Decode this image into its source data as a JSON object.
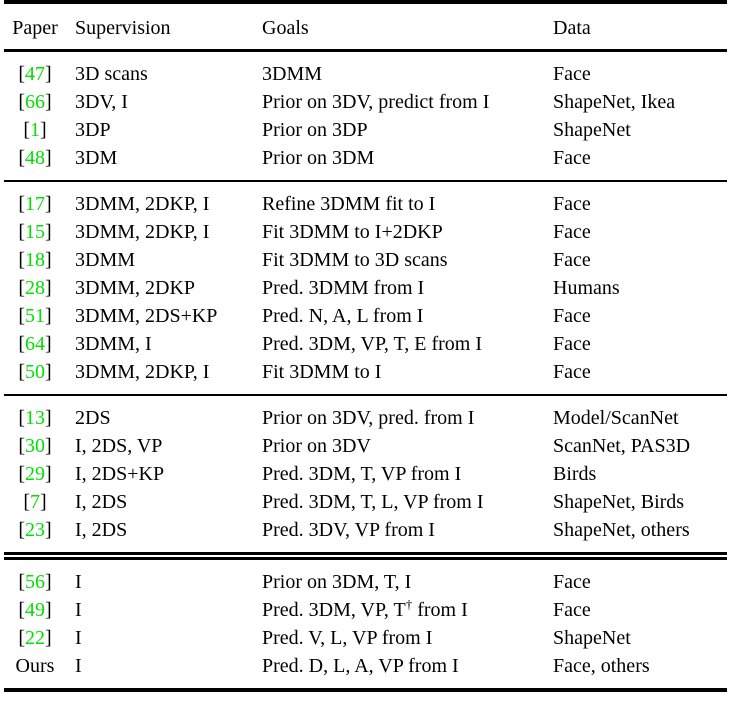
{
  "table": {
    "columns": [
      "Paper",
      "Supervision",
      "Goals",
      "Data"
    ],
    "citation_color": "#00e100",
    "text_color": "#000000",
    "sections": [
      {
        "rows": [
          {
            "paper": "47",
            "citation": true,
            "supervision": "3D scans",
            "goals": "3DMM",
            "data": "Face"
          },
          {
            "paper": "66",
            "citation": true,
            "supervision": "3DV, I",
            "goals": "Prior on 3DV, predict from I",
            "data": "ShapeNet, Ikea"
          },
          {
            "paper": "1",
            "citation": true,
            "supervision": "3DP",
            "goals": "Prior on 3DP",
            "data": "ShapeNet"
          },
          {
            "paper": "48",
            "citation": true,
            "supervision": "3DM",
            "goals": "Prior on 3DM",
            "data": "Face"
          }
        ]
      },
      {
        "rule_before": "single",
        "rows": [
          {
            "paper": "17",
            "citation": true,
            "supervision": "3DMM, 2DKP, I",
            "goals": "Refine 3DMM fit to I",
            "data": "Face"
          },
          {
            "paper": "15",
            "citation": true,
            "supervision": "3DMM, 2DKP, I",
            "goals": "Fit 3DMM to I+2DKP",
            "data": "Face"
          },
          {
            "paper": "18",
            "citation": true,
            "supervision": "3DMM",
            "goals": "Fit 3DMM to 3D scans",
            "data": "Face"
          },
          {
            "paper": "28",
            "citation": true,
            "supervision": "3DMM, 2DKP",
            "goals": "Pred. 3DMM from I",
            "data": "Humans"
          },
          {
            "paper": "51",
            "citation": true,
            "supervision": "3DMM, 2DS+KP",
            "goals": "Pred. N, A, L from I",
            "data": "Face"
          },
          {
            "paper": "64",
            "citation": true,
            "supervision": "3DMM, I",
            "goals": "Pred. 3DM, VP, T, E from I",
            "data": "Face"
          },
          {
            "paper": "50",
            "citation": true,
            "supervision": "3DMM, 2DKP, I",
            "goals": "Fit 3DMM to I",
            "data": "Face"
          }
        ]
      },
      {
        "rule_before": "single",
        "rows": [
          {
            "paper": "13",
            "citation": true,
            "supervision": "2DS",
            "goals": "Prior on 3DV, pred. from I",
            "data": "Model/ScanNet"
          },
          {
            "paper": "30",
            "citation": true,
            "supervision": "I, 2DS, VP",
            "goals": "Prior on 3DV",
            "data": "ScanNet, PAS3D"
          },
          {
            "paper": "29",
            "citation": true,
            "supervision": "I, 2DS+KP",
            "goals": "Pred. 3DM, T, VP from I",
            "data": "Birds"
          },
          {
            "paper": "7",
            "citation": true,
            "supervision": "I, 2DS",
            "goals": "Pred. 3DM, T, L, VP from I",
            "data": "ShapeNet, Birds"
          },
          {
            "paper": "23",
            "citation": true,
            "supervision": "I, 2DS",
            "goals": "Pred. 3DV, VP from I",
            "data": "ShapeNet, others"
          }
        ]
      },
      {
        "rule_before": "double",
        "rows": [
          {
            "paper": "56",
            "citation": true,
            "supervision": "I",
            "goals": "Prior on 3DM, T, I",
            "data": "Face"
          },
          {
            "paper": "49",
            "citation": true,
            "supervision": "I",
            "goals": "Pred. 3DM, VP, T† from I",
            "data": "Face"
          },
          {
            "paper": "22",
            "citation": true,
            "supervision": "I",
            "goals": "Pred. V, L, VP from I",
            "data": "ShapeNet"
          },
          {
            "paper": "Ours",
            "citation": false,
            "supervision": "I",
            "goals": "Pred. D, L, A, VP from I",
            "data": "Face, others"
          }
        ]
      }
    ]
  }
}
